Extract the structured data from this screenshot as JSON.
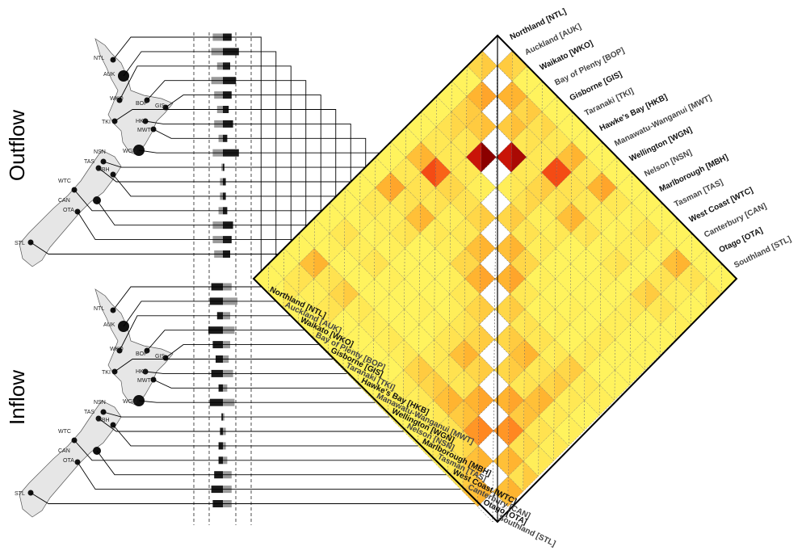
{
  "panels": {
    "outflow_label": "Outflow",
    "inflow_label": "Inflow"
  },
  "region_labels": [
    "Northland [NTL]",
    "Auckland [AUK]",
    "Waikato [WKO]",
    "Bay of Plenty [BOP]",
    "Gisborne [GIS]",
    "Taranaki [TKI]",
    "Hawke's Bay [HKB]",
    "Manawatu-Wanganui [MWT]",
    "Wellington [WGN]",
    "Nelson [NSN]",
    "Marlborough [MBH]",
    "Tasman [TAS]",
    "West Coast [WTC]",
    "Canterbury [CAN]",
    "Otago [OTA]",
    "Southland [STL]"
  ],
  "map_codes": {
    "north": [
      "NTL",
      "AUK",
      "WKO",
      "BOP",
      "GIS",
      "TKI",
      "HKB",
      "MWT",
      "WGN"
    ],
    "south": [
      "NSN",
      "TAS",
      "MBH",
      "WTC",
      "CAN",
      "OTA",
      "STL"
    ]
  },
  "colors": {
    "low": "#ffff66",
    "mid_low": "#ffd84d",
    "mid": "#ffab2e",
    "high": "#ff6e1a",
    "very_high": "#e81c0c",
    "max": "#8b0000",
    "bar_dark": "#1a1a1a",
    "bar_light": "#9a9a9a",
    "map_fill": "#e6e6e6"
  },
  "chart_data": {
    "type": "heatmap",
    "title": "",
    "categories": [
      "NTL",
      "AUK",
      "WKO",
      "BOP",
      "GIS",
      "TKI",
      "HKB",
      "MWT",
      "WGN",
      "NSN",
      "MBH",
      "TAS",
      "WTC",
      "CAN",
      "OTA",
      "STL"
    ],
    "left_matrix": [
      [
        0.1,
        0.35,
        0.1,
        0.1,
        0.1,
        0.1,
        0.1,
        0.1,
        0.1,
        0.1,
        0.1,
        0.1,
        0.1,
        0.1,
        0.1,
        0.1
      ],
      [
        0.3,
        0.1,
        0.45,
        0.3,
        0.25,
        0.2,
        0.4,
        0.2,
        0.45,
        0.2,
        0.1,
        0.2,
        0.1,
        0.4,
        0.2,
        0.1
      ],
      [
        0.1,
        0.45,
        0.1,
        0.35,
        0.2,
        0.2,
        0.75,
        0.25,
        0.2,
        0.15,
        0.1,
        0.15,
        0.1,
        0.2,
        0.15,
        0.1
      ],
      [
        0.1,
        0.3,
        0.35,
        0.1,
        0.9,
        0.2,
        0.3,
        0.2,
        0.4,
        0.2,
        0.1,
        0.2,
        0.1,
        0.3,
        0.2,
        0.1
      ],
      [
        0.1,
        0.25,
        0.2,
        0.9,
        0.1,
        0.15,
        0.25,
        0.15,
        0.15,
        0.1,
        0.1,
        0.1,
        0.1,
        0.15,
        0.1,
        0.1
      ],
      [
        0.1,
        0.2,
        0.2,
        0.2,
        0.15,
        0.1,
        0.3,
        0.2,
        0.15,
        0.1,
        0.1,
        0.1,
        0.1,
        0.15,
        0.1,
        0.1
      ],
      [
        0.1,
        0.4,
        0.75,
        0.3,
        0.25,
        0.3,
        0.1,
        0.4,
        0.3,
        0.1,
        0.1,
        0.1,
        0.1,
        0.15,
        0.1,
        0.1
      ],
      [
        0.1,
        0.2,
        0.25,
        0.2,
        0.15,
        0.2,
        0.4,
        0.1,
        0.45,
        0.2,
        0.1,
        0.1,
        0.1,
        0.15,
        0.1,
        0.1
      ],
      [
        0.1,
        0.45,
        0.2,
        0.4,
        0.15,
        0.15,
        0.3,
        0.45,
        0.1,
        0.3,
        0.2,
        0.2,
        0.15,
        0.3,
        0.15,
        0.15
      ],
      [
        0.1,
        0.2,
        0.15,
        0.2,
        0.1,
        0.1,
        0.1,
        0.2,
        0.3,
        0.1,
        0.3,
        0.4,
        0.2,
        0.3,
        0.15,
        0.1
      ],
      [
        0.1,
        0.1,
        0.1,
        0.1,
        0.1,
        0.1,
        0.1,
        0.1,
        0.2,
        0.3,
        0.1,
        0.3,
        0.2,
        0.4,
        0.15,
        0.1
      ],
      [
        0.1,
        0.2,
        0.15,
        0.2,
        0.1,
        0.1,
        0.1,
        0.1,
        0.2,
        0.4,
        0.3,
        0.1,
        0.45,
        0.35,
        0.2,
        0.15
      ],
      [
        0.1,
        0.1,
        0.1,
        0.1,
        0.1,
        0.1,
        0.1,
        0.1,
        0.15,
        0.2,
        0.2,
        0.45,
        0.1,
        0.55,
        0.25,
        0.15
      ],
      [
        0.1,
        0.4,
        0.2,
        0.3,
        0.15,
        0.15,
        0.15,
        0.15,
        0.3,
        0.3,
        0.4,
        0.35,
        0.55,
        0.1,
        0.4,
        0.25
      ],
      [
        0.1,
        0.2,
        0.15,
        0.2,
        0.1,
        0.1,
        0.1,
        0.1,
        0.15,
        0.15,
        0.15,
        0.2,
        0.25,
        0.4,
        0.1,
        0.4
      ],
      [
        0.1,
        0.1,
        0.1,
        0.1,
        0.1,
        0.1,
        0.1,
        0.1,
        0.15,
        0.1,
        0.1,
        0.15,
        0.15,
        0.25,
        0.4,
        0.1
      ]
    ],
    "right_matrix": [
      [
        0.1,
        0.3,
        0.1,
        0.1,
        0.1,
        0.1,
        0.1,
        0.1,
        0.1,
        0.1,
        0.1,
        0.1,
        0.1,
        0.1,
        0.1,
        0.1
      ],
      [
        0.35,
        0.1,
        0.45,
        0.35,
        0.3,
        0.2,
        0.45,
        0.2,
        0.5,
        0.2,
        0.15,
        0.25,
        0.15,
        0.45,
        0.25,
        0.2
      ],
      [
        0.1,
        0.5,
        0.1,
        0.4,
        0.25,
        0.2,
        0.75,
        0.25,
        0.2,
        0.15,
        0.15,
        0.15,
        0.1,
        0.25,
        0.15,
        0.1
      ],
      [
        0.1,
        0.35,
        0.4,
        0.1,
        0.95,
        0.2,
        0.35,
        0.25,
        0.45,
        0.25,
        0.15,
        0.25,
        0.1,
        0.35,
        0.25,
        0.15
      ],
      [
        0.1,
        0.3,
        0.25,
        1.0,
        0.1,
        0.2,
        0.3,
        0.15,
        0.2,
        0.1,
        0.1,
        0.15,
        0.1,
        0.2,
        0.1,
        0.1
      ],
      [
        0.1,
        0.2,
        0.2,
        0.2,
        0.15,
        0.1,
        0.35,
        0.25,
        0.2,
        0.1,
        0.1,
        0.1,
        0.1,
        0.15,
        0.1,
        0.1
      ],
      [
        0.1,
        0.45,
        0.7,
        0.3,
        0.25,
        0.35,
        0.1,
        0.45,
        0.3,
        0.15,
        0.1,
        0.15,
        0.1,
        0.2,
        0.1,
        0.1
      ],
      [
        0.1,
        0.2,
        0.25,
        0.25,
        0.15,
        0.2,
        0.45,
        0.1,
        0.5,
        0.2,
        0.15,
        0.15,
        0.1,
        0.2,
        0.1,
        0.1
      ],
      [
        0.1,
        0.5,
        0.25,
        0.45,
        0.2,
        0.15,
        0.3,
        0.5,
        0.1,
        0.35,
        0.25,
        0.25,
        0.2,
        0.35,
        0.2,
        0.15
      ],
      [
        0.1,
        0.2,
        0.15,
        0.25,
        0.1,
        0.1,
        0.15,
        0.2,
        0.35,
        0.1,
        0.35,
        0.45,
        0.25,
        0.35,
        0.2,
        0.1
      ],
      [
        0.1,
        0.15,
        0.15,
        0.15,
        0.1,
        0.1,
        0.1,
        0.15,
        0.25,
        0.35,
        0.1,
        0.35,
        0.25,
        0.45,
        0.2,
        0.15
      ],
      [
        0.1,
        0.25,
        0.15,
        0.25,
        0.15,
        0.1,
        0.15,
        0.15,
        0.25,
        0.45,
        0.35,
        0.1,
        0.5,
        0.4,
        0.25,
        0.2
      ],
      [
        0.1,
        0.15,
        0.1,
        0.1,
        0.1,
        0.1,
        0.1,
        0.1,
        0.2,
        0.25,
        0.25,
        0.5,
        0.1,
        0.6,
        0.3,
        0.2
      ],
      [
        0.1,
        0.45,
        0.25,
        0.35,
        0.2,
        0.15,
        0.2,
        0.2,
        0.35,
        0.35,
        0.45,
        0.4,
        0.6,
        0.1,
        0.45,
        0.35
      ],
      [
        0.1,
        0.25,
        0.15,
        0.25,
        0.1,
        0.1,
        0.1,
        0.1,
        0.2,
        0.2,
        0.2,
        0.25,
        0.3,
        0.45,
        0.1,
        0.45
      ],
      [
        0.1,
        0.2,
        0.1,
        0.15,
        0.1,
        0.1,
        0.1,
        0.1,
        0.15,
        0.1,
        0.15,
        0.2,
        0.2,
        0.35,
        0.45,
        0.1
      ]
    ],
    "outflow_bars": {
      "dark": [
        0.3,
        0.55,
        0.25,
        0.45,
        0.3,
        0.2,
        0.35,
        0.15,
        0.55,
        0.05,
        0.1,
        0.1,
        0.15,
        0.35,
        0.3,
        0.25
      ],
      "light": [
        0.35,
        0.4,
        0.2,
        0.4,
        0.3,
        0.2,
        0.3,
        0.15,
        0.35,
        0.05,
        0.1,
        0.1,
        0.15,
        0.35,
        0.35,
        0.3
      ]
    },
    "inflow_bars": {
      "dark": [
        0.4,
        0.45,
        0.2,
        0.5,
        0.35,
        0.25,
        0.4,
        0.15,
        0.45,
        0.05,
        0.1,
        0.15,
        0.15,
        0.3,
        0.4,
        0.35
      ],
      "light": [
        0.3,
        0.5,
        0.25,
        0.4,
        0.25,
        0.2,
        0.35,
        0.15,
        0.4,
        0.05,
        0.1,
        0.1,
        0.15,
        0.3,
        0.3,
        0.3
      ]
    },
    "grid": true,
    "legend": "none"
  }
}
